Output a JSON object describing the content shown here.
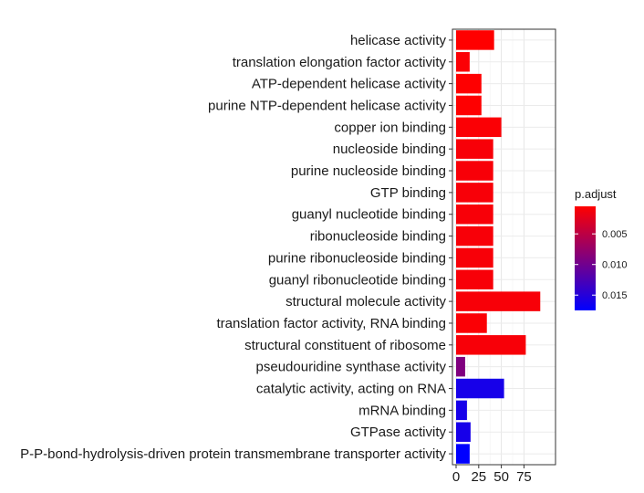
{
  "chart_data": {
    "type": "bar",
    "orientation": "horizontal",
    "categories": [
      "helicase activity",
      "translation elongation factor activity",
      "ATP-dependent helicase activity",
      "purine NTP-dependent helicase activity",
      "copper ion binding",
      "nucleoside binding",
      "purine nucleoside binding",
      "GTP binding",
      "guanyl nucleotide binding",
      "ribonucleoside binding",
      "purine ribonucleoside binding",
      "guanyl ribonucleotide binding",
      "structural molecule activity",
      "translation factor activity, RNA binding",
      "structural constituent of ribosome",
      "pseudouridine synthase activity",
      "catalytic activity, acting on RNA",
      "mRNA binding",
      "GTPase activity",
      "P-P-bond-hydrolysis-driven protein transmembrane transporter activity"
    ],
    "values": [
      42,
      15,
      28,
      28,
      50,
      41,
      41,
      41,
      41,
      41,
      41,
      41,
      93,
      34,
      77,
      10,
      53,
      12,
      16,
      15
    ],
    "p_adjust": [
      0.0005,
      0.0008,
      0.0006,
      0.0006,
      0.0008,
      0.001,
      0.001,
      0.001,
      0.001,
      0.001,
      0.001,
      0.001,
      0.001,
      0.0008,
      0.001,
      0.009,
      0.016,
      0.016,
      0.016,
      0.0175
    ],
    "xlim": [
      0,
      100
    ],
    "xticks": [
      0,
      25,
      50,
      75
    ],
    "xtick_labels": [
      "0",
      "25",
      "50",
      "75"
    ],
    "grid": true,
    "legend": {
      "title": "p.adjust",
      "placement": "right",
      "ticks": [
        0.005,
        0.01,
        0.015
      ],
      "tick_labels": [
        "0.005",
        "0.010",
        "0.015"
      ],
      "range": [
        0.0005,
        0.0175
      ],
      "low_color": "#ff0000",
      "high_color": "#0000ff",
      "reversed": true
    }
  }
}
